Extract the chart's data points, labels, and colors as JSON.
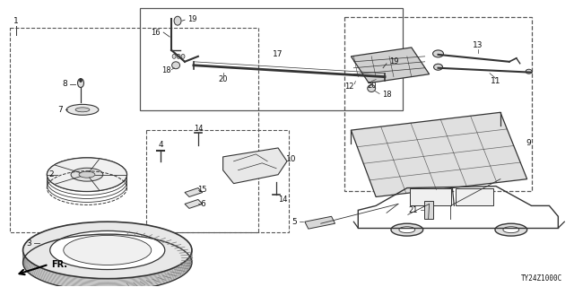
{
  "bg_color": "#ffffff",
  "diagram_code": "TY24Z1000C",
  "line_color": "#333333",
  "text_color": "#111111"
}
